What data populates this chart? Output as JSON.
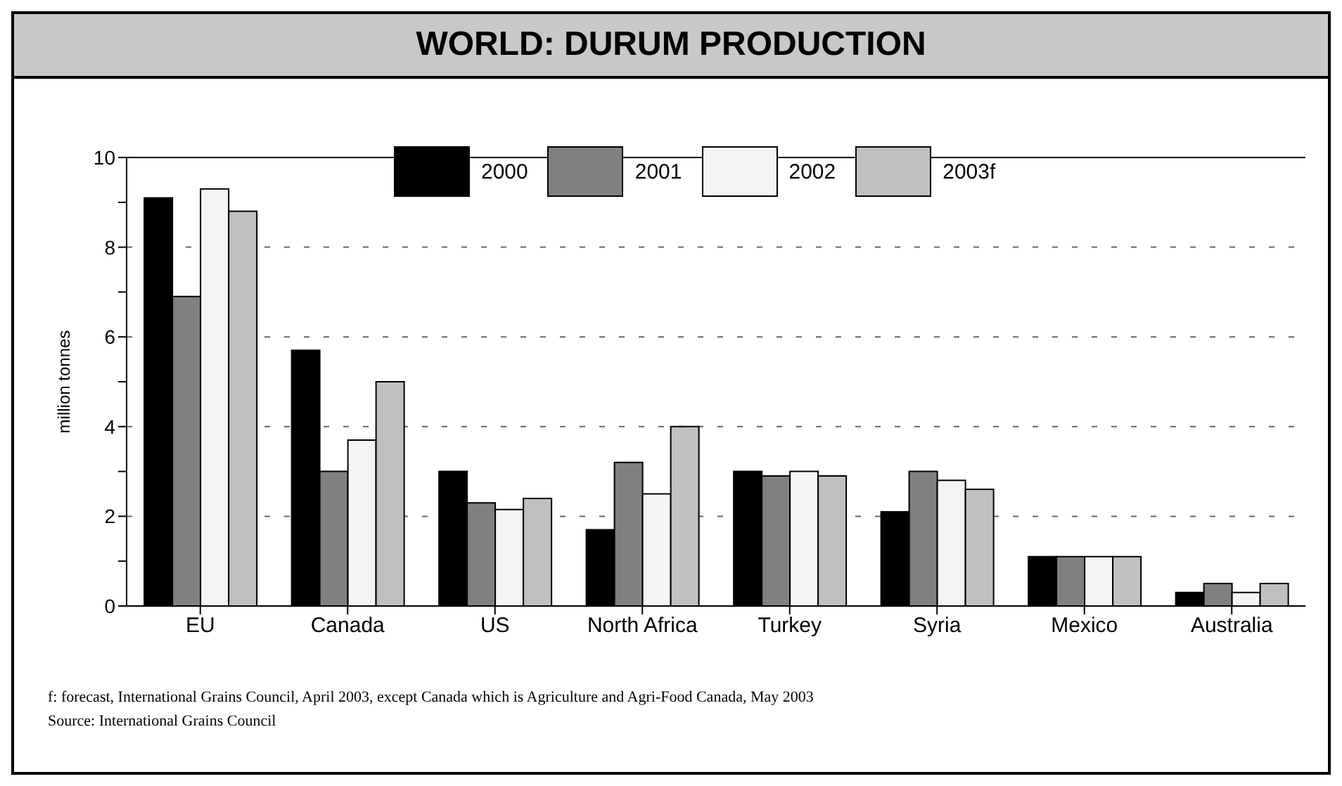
{
  "chart_data": {
    "type": "bar",
    "title": "WORLD: DURUM PRODUCTION",
    "ylabel": "million tonnes",
    "categories": [
      "EU",
      "Canada",
      "US",
      "North Africa",
      "Turkey",
      "Syria",
      "Mexico",
      "Australia"
    ],
    "series": [
      {
        "name": "2000",
        "color": "#000000",
        "values": [
          9.1,
          5.7,
          3.0,
          1.7,
          3.0,
          2.1,
          1.1,
          0.3
        ]
      },
      {
        "name": "2001",
        "color": "#808080",
        "values": [
          6.9,
          3.0,
          2.3,
          3.2,
          2.9,
          3.0,
          1.1,
          0.5
        ]
      },
      {
        "name": "2002",
        "color": "#f4f4f4",
        "values": [
          9.3,
          3.7,
          2.15,
          2.5,
          3.0,
          2.8,
          1.1,
          0.3
        ]
      },
      {
        "name": "2003f",
        "color": "#c0c0c0",
        "values": [
          8.8,
          5.0,
          2.4,
          4.0,
          2.9,
          2.6,
          1.1,
          0.5
        ]
      }
    ],
    "ylim": [
      0,
      10
    ],
    "yticks": [
      0,
      {
        "value": 1,
        "label": null
      },
      2,
      {
        "value": 3,
        "label": null
      },
      4,
      {
        "value": 5,
        "label": null
      },
      6,
      {
        "value": 7,
        "label": null
      },
      8,
      {
        "value": 9,
        "label": null
      },
      10
    ],
    "grid": "y",
    "legend": "top right",
    "annotations": [
      "f: forecast, International Grains Council, April 2003, except Canada which is Agriculture and Agri-Food Canada, May 2003",
      "Source: International Grains Council"
    ]
  }
}
